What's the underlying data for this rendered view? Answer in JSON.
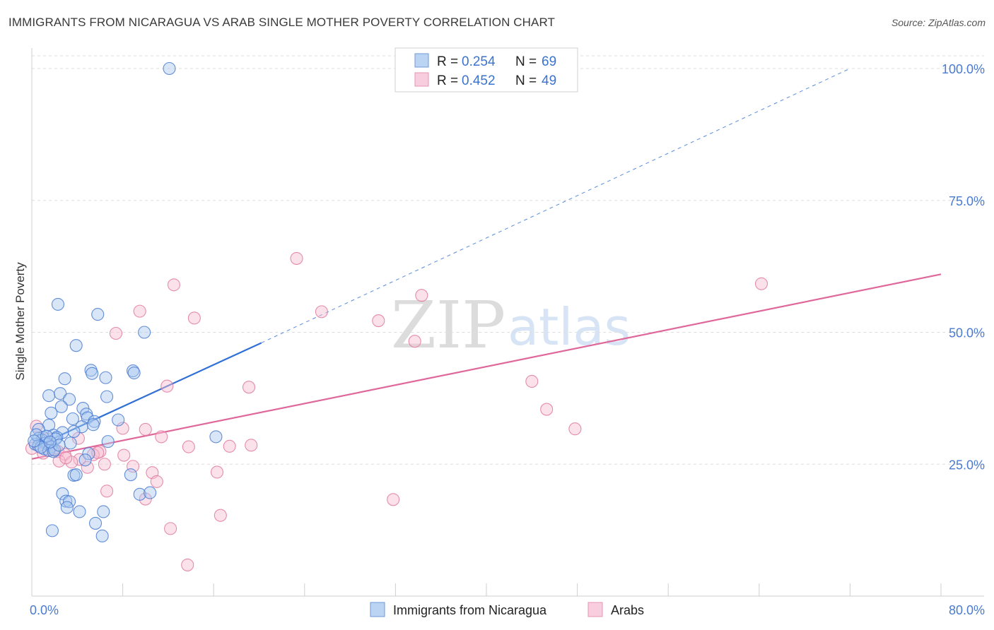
{
  "title": "IMMIGRANTS FROM NICARAGUA VS ARAB SINGLE MOTHER POVERTY CORRELATION CHART",
  "source": "Source: ZipAtlas.com",
  "watermark": {
    "zip": "ZIP",
    "atlas": "atlas"
  },
  "legend": {
    "r_label": "R =",
    "n_label": "N =",
    "rows": [
      {
        "r": "0.254",
        "n": "69"
      },
      {
        "r": "0.452",
        "n": "49"
      }
    ]
  },
  "chart_data": {
    "type": "scatter",
    "title": "IMMIGRANTS FROM NICARAGUA VS ARAB SINGLE MOTHER POVERTY CORRELATION CHART",
    "xlabel": "",
    "ylabel": "Single Mother Poverty",
    "xlim": [
      0,
      80
    ],
    "ylim": [
      0,
      100
    ],
    "x_ticks": [
      0,
      80
    ],
    "x_tick_labels": [
      "0.0%",
      "80.0%"
    ],
    "y_ticks": [
      25,
      50,
      75,
      100
    ],
    "y_tick_labels": [
      "25.0%",
      "50.0%",
      "75.0%",
      "100.0%"
    ],
    "colors": {
      "blue": "#4a7bd0",
      "blue_fill": "#a9c8f0",
      "pink": "#e07aa0",
      "pink_fill": "#f6bcd1",
      "blue_line": "#2f6fd6",
      "pink_line": "#e0679a"
    },
    "series": [
      {
        "name": "Immigrants from Nicaragua",
        "color": "#4a7bd0",
        "r": 0.254,
        "n": 69,
        "trend": {
          "x0": 0,
          "y0": 28.0,
          "x1": 20.2,
          "y1": 48.0,
          "dashed_to_x": 72,
          "dashed_to_y": 100
        },
        "points": [
          [
            12.1,
            100.0
          ],
          [
            2.3,
            55.3
          ],
          [
            5.8,
            53.4
          ],
          [
            9.9,
            50.0
          ],
          [
            3.9,
            47.5
          ],
          [
            5.2,
            42.8
          ],
          [
            8.9,
            42.7
          ],
          [
            9.0,
            42.3
          ],
          [
            5.3,
            42.2
          ],
          [
            6.5,
            41.4
          ],
          [
            2.9,
            41.2
          ],
          [
            1.5,
            38.0
          ],
          [
            2.5,
            38.4
          ],
          [
            6.6,
            37.8
          ],
          [
            3.3,
            37.3
          ],
          [
            2.6,
            35.9
          ],
          [
            4.5,
            35.6
          ],
          [
            1.7,
            34.7
          ],
          [
            4.8,
            34.5
          ],
          [
            4.9,
            33.8
          ],
          [
            3.6,
            33.6
          ],
          [
            7.6,
            33.4
          ],
          [
            5.5,
            33.1
          ],
          [
            5.4,
            32.5
          ],
          [
            1.5,
            32.4
          ],
          [
            4.4,
            32.1
          ],
          [
            0.6,
            31.6
          ],
          [
            3.7,
            31.2
          ],
          [
            2.7,
            31.0
          ],
          [
            1.9,
            30.5
          ],
          [
            2.2,
            30.1
          ],
          [
            1.0,
            30.1
          ],
          [
            2.1,
            29.8
          ],
          [
            0.6,
            29.9
          ],
          [
            16.2,
            30.2
          ],
          [
            0.9,
            29.6
          ],
          [
            6.7,
            29.3
          ],
          [
            1.2,
            29.0
          ],
          [
            3.4,
            29.0
          ],
          [
            0.3,
            28.8
          ],
          [
            1.4,
            28.8
          ],
          [
            0.6,
            28.5
          ],
          [
            1.7,
            28.3
          ],
          [
            1.1,
            27.9
          ],
          [
            1.5,
            27.6
          ],
          [
            1.9,
            27.4
          ],
          [
            5.0,
            27.0
          ],
          [
            4.7,
            25.8
          ],
          [
            3.7,
            22.9
          ],
          [
            3.9,
            23.0
          ],
          [
            8.7,
            23.0
          ],
          [
            2.7,
            19.4
          ],
          [
            9.5,
            19.3
          ],
          [
            10.4,
            19.6
          ],
          [
            3.0,
            18.0
          ],
          [
            3.3,
            17.9
          ],
          [
            3.1,
            16.8
          ],
          [
            4.2,
            16.0
          ],
          [
            6.3,
            16.0
          ],
          [
            5.6,
            13.8
          ],
          [
            1.8,
            12.4
          ],
          [
            6.2,
            11.4
          ],
          [
            2.0,
            27.7
          ],
          [
            0.4,
            30.6
          ],
          [
            1.3,
            30.3
          ],
          [
            0.8,
            28.2
          ],
          [
            2.4,
            28.6
          ],
          [
            1.6,
            29.2
          ],
          [
            0.2,
            29.4
          ]
        ]
      },
      {
        "name": "Arabs",
        "color": "#e07aa0",
        "r": 0.452,
        "n": 49,
        "trend": {
          "x0": 0,
          "y0": 26.0,
          "x1": 80,
          "y1": 61.0
        },
        "points": [
          [
            23.3,
            64.0
          ],
          [
            64.2,
            59.2
          ],
          [
            12.5,
            59.0
          ],
          [
            34.3,
            57.0
          ],
          [
            9.5,
            54.0
          ],
          [
            25.5,
            53.9
          ],
          [
            14.3,
            52.7
          ],
          [
            30.5,
            52.2
          ],
          [
            7.4,
            49.8
          ],
          [
            33.7,
            48.3
          ],
          [
            44.0,
            40.7
          ],
          [
            11.9,
            39.8
          ],
          [
            19.1,
            39.6
          ],
          [
            45.3,
            35.4
          ],
          [
            8.0,
            31.8
          ],
          [
            47.8,
            31.7
          ],
          [
            10.0,
            31.6
          ],
          [
            11.4,
            30.2
          ],
          [
            1.4,
            29.8
          ],
          [
            4.1,
            29.9
          ],
          [
            17.4,
            28.4
          ],
          [
            19.3,
            28.6
          ],
          [
            13.8,
            28.3
          ],
          [
            0.0,
            28.0
          ],
          [
            1.5,
            27.6
          ],
          [
            2.3,
            27.4
          ],
          [
            6.0,
            27.4
          ],
          [
            2.9,
            26.9
          ],
          [
            5.4,
            26.8
          ],
          [
            8.1,
            26.7
          ],
          [
            4.2,
            25.9
          ],
          [
            2.4,
            25.6
          ],
          [
            3.5,
            25.4
          ],
          [
            6.4,
            25.0
          ],
          [
            8.9,
            24.6
          ],
          [
            4.9,
            24.4
          ],
          [
            10.6,
            23.4
          ],
          [
            16.3,
            23.5
          ],
          [
            11.0,
            21.7
          ],
          [
            6.6,
            19.9
          ],
          [
            10.0,
            18.4
          ],
          [
            31.8,
            18.3
          ],
          [
            16.6,
            15.3
          ],
          [
            12.2,
            12.8
          ],
          [
            13.7,
            5.9
          ],
          [
            0.4,
            32.2
          ],
          [
            1.0,
            27.1
          ],
          [
            3.0,
            26.2
          ],
          [
            5.8,
            27.2
          ]
        ]
      }
    ]
  }
}
